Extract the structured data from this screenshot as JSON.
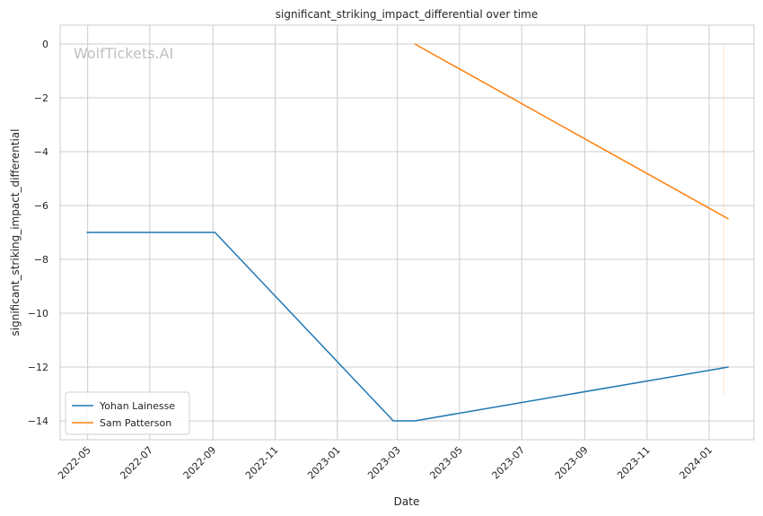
{
  "chart_data": {
    "type": "line",
    "title": "significant_striking_impact_differential over time",
    "xlabel": "Date",
    "ylabel": "significant_striking_impact_differential",
    "watermark": "WolfTickets.AI",
    "x_ticks": [
      "2022-05",
      "2022-07",
      "2022-09",
      "2022-11",
      "2023-01",
      "2023-03",
      "2023-05",
      "2023-07",
      "2023-09",
      "2023-11",
      "2024-01"
    ],
    "x_tick_dates": [
      "2022-05-01",
      "2022-07-01",
      "2022-09-01",
      "2022-11-01",
      "2023-01-01",
      "2023-03-01",
      "2023-05-01",
      "2023-07-01",
      "2023-09-01",
      "2023-11-01",
      "2024-01-01"
    ],
    "xlim": [
      "2022-04-04",
      "2024-02-14"
    ],
    "y_ticks": [
      0,
      -2,
      -4,
      -6,
      -8,
      -10,
      -12,
      -14
    ],
    "ylim": [
      -14.7,
      0.7
    ],
    "grid": true,
    "legend_position": "lower-left",
    "series": [
      {
        "name": "Yohan Lainesse",
        "color": "#1f77b4",
        "x": [
          "2022-04-30",
          "2022-09-03",
          "2023-02-25",
          "2023-03-18",
          "2024-01-20"
        ],
        "y": [
          -7,
          -7,
          -14,
          -14,
          -12
        ]
      },
      {
        "name": "Sam Patterson",
        "color": "#ff7f0e",
        "x": [
          "2023-03-18",
          "2024-01-20"
        ],
        "y": [
          0,
          -6.5
        ]
      }
    ]
  }
}
